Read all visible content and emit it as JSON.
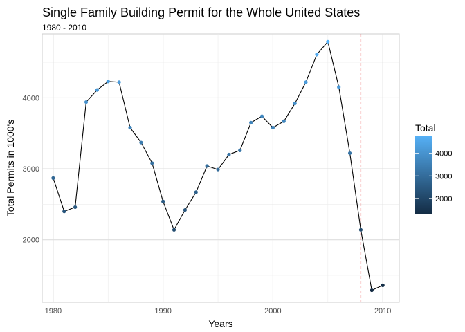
{
  "chart_data": {
    "type": "line",
    "title": "Single Family Building Permit for the Whole United States",
    "subtitle": "1980 - 2010",
    "xlabel": "Years",
    "ylabel": "Total Permits in 1000's",
    "xlim": [
      1979,
      2011.5
    ],
    "ylim": [
      1120,
      4900
    ],
    "x_ticks": [
      1980,
      1990,
      2000,
      2010
    ],
    "y_ticks": [
      2000,
      3000,
      4000
    ],
    "grid": true,
    "legend_position": "right",
    "legend": {
      "title": "Total",
      "ticks": [
        2000,
        3000,
        4000
      ],
      "range": [
        1290,
        4790
      ],
      "color_low": "#132B43",
      "color_high": "#56B1F7"
    },
    "reference_line": {
      "x": 2008,
      "color": "#e31a1c",
      "style": "dashed"
    },
    "line_color": "#000000",
    "series": [
      {
        "x": [
          1980,
          1981,
          1982,
          1983,
          1984,
          1985,
          1986,
          1987,
          1988,
          1989,
          1990,
          1991,
          1992,
          1993,
          1994,
          1995,
          1996,
          1997,
          1998,
          1999,
          2000,
          2001,
          2002,
          2003,
          2004,
          2005,
          2006,
          2007,
          2008,
          2009,
          2010
        ],
        "values": [
          2870,
          2400,
          2460,
          3940,
          4110,
          4230,
          4220,
          3580,
          3370,
          3080,
          2540,
          2140,
          2420,
          2670,
          3040,
          2990,
          3200,
          3260,
          3650,
          3740,
          3580,
          3670,
          3920,
          4220,
          4610,
          4790,
          4150,
          3220,
          2140,
          1290,
          1360
        ]
      }
    ]
  }
}
